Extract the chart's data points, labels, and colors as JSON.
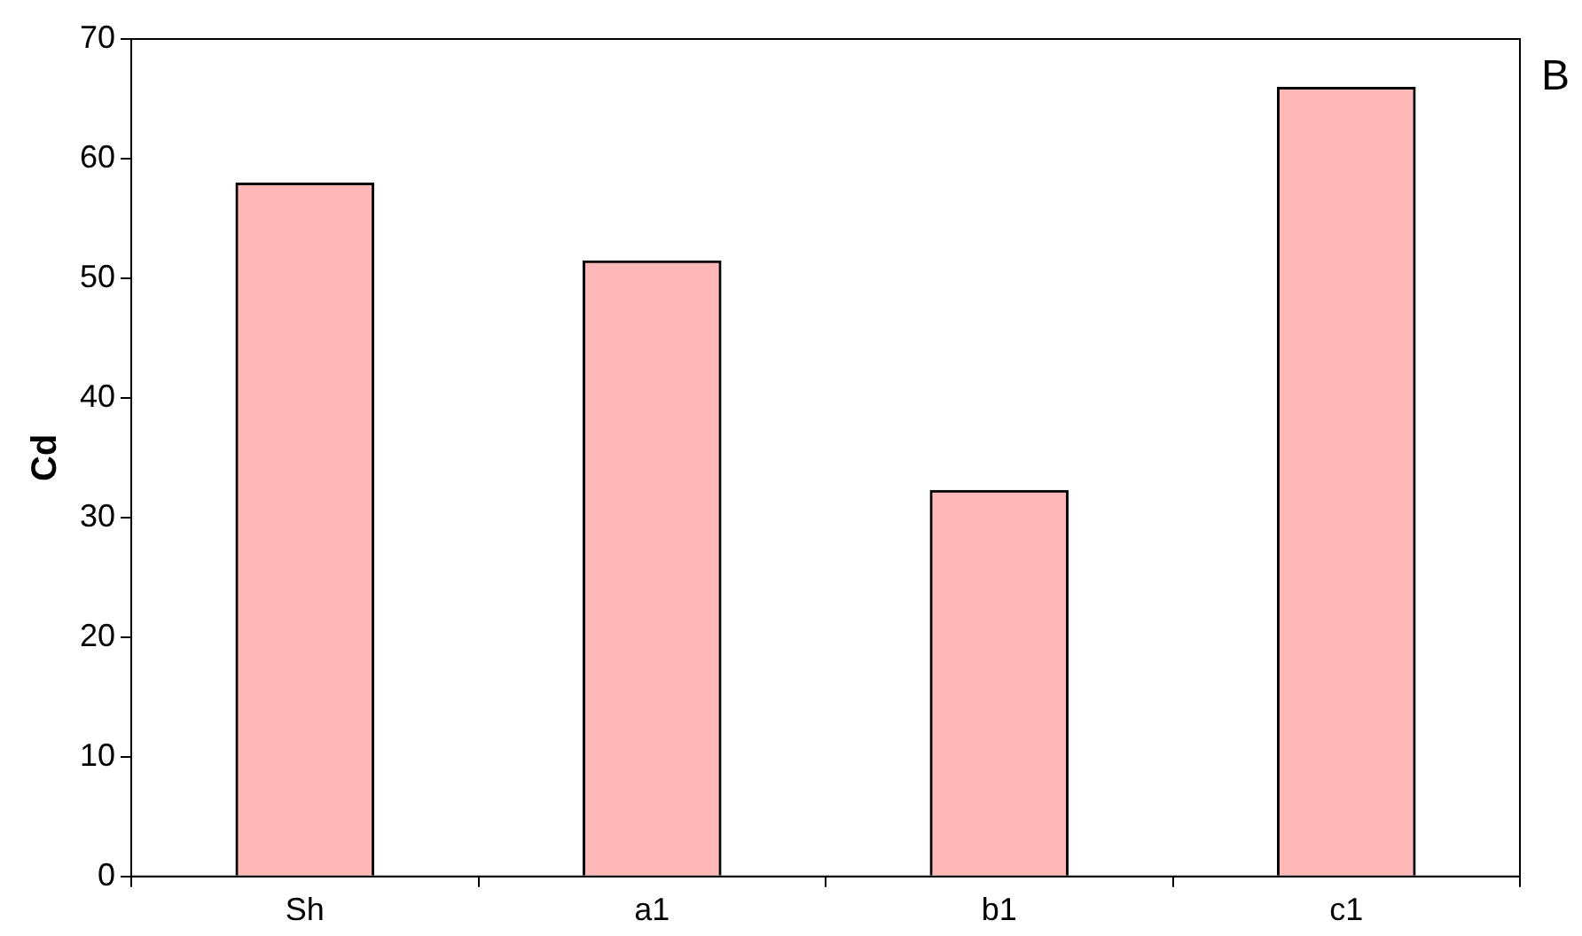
{
  "chart_data": {
    "type": "bar",
    "ylabel": "Cd",
    "categories": [
      "Sh",
      "a1",
      "b1",
      "c1"
    ],
    "values": [
      58,
      51.5,
      32.3,
      66
    ],
    "color": "#ff0000",
    "ylim": [
      0,
      70
    ],
    "yticks": [
      0,
      10,
      20,
      30,
      40,
      50,
      60,
      70
    ],
    "grid": false,
    "legend": false,
    "annotations": [
      "B"
    ]
  }
}
